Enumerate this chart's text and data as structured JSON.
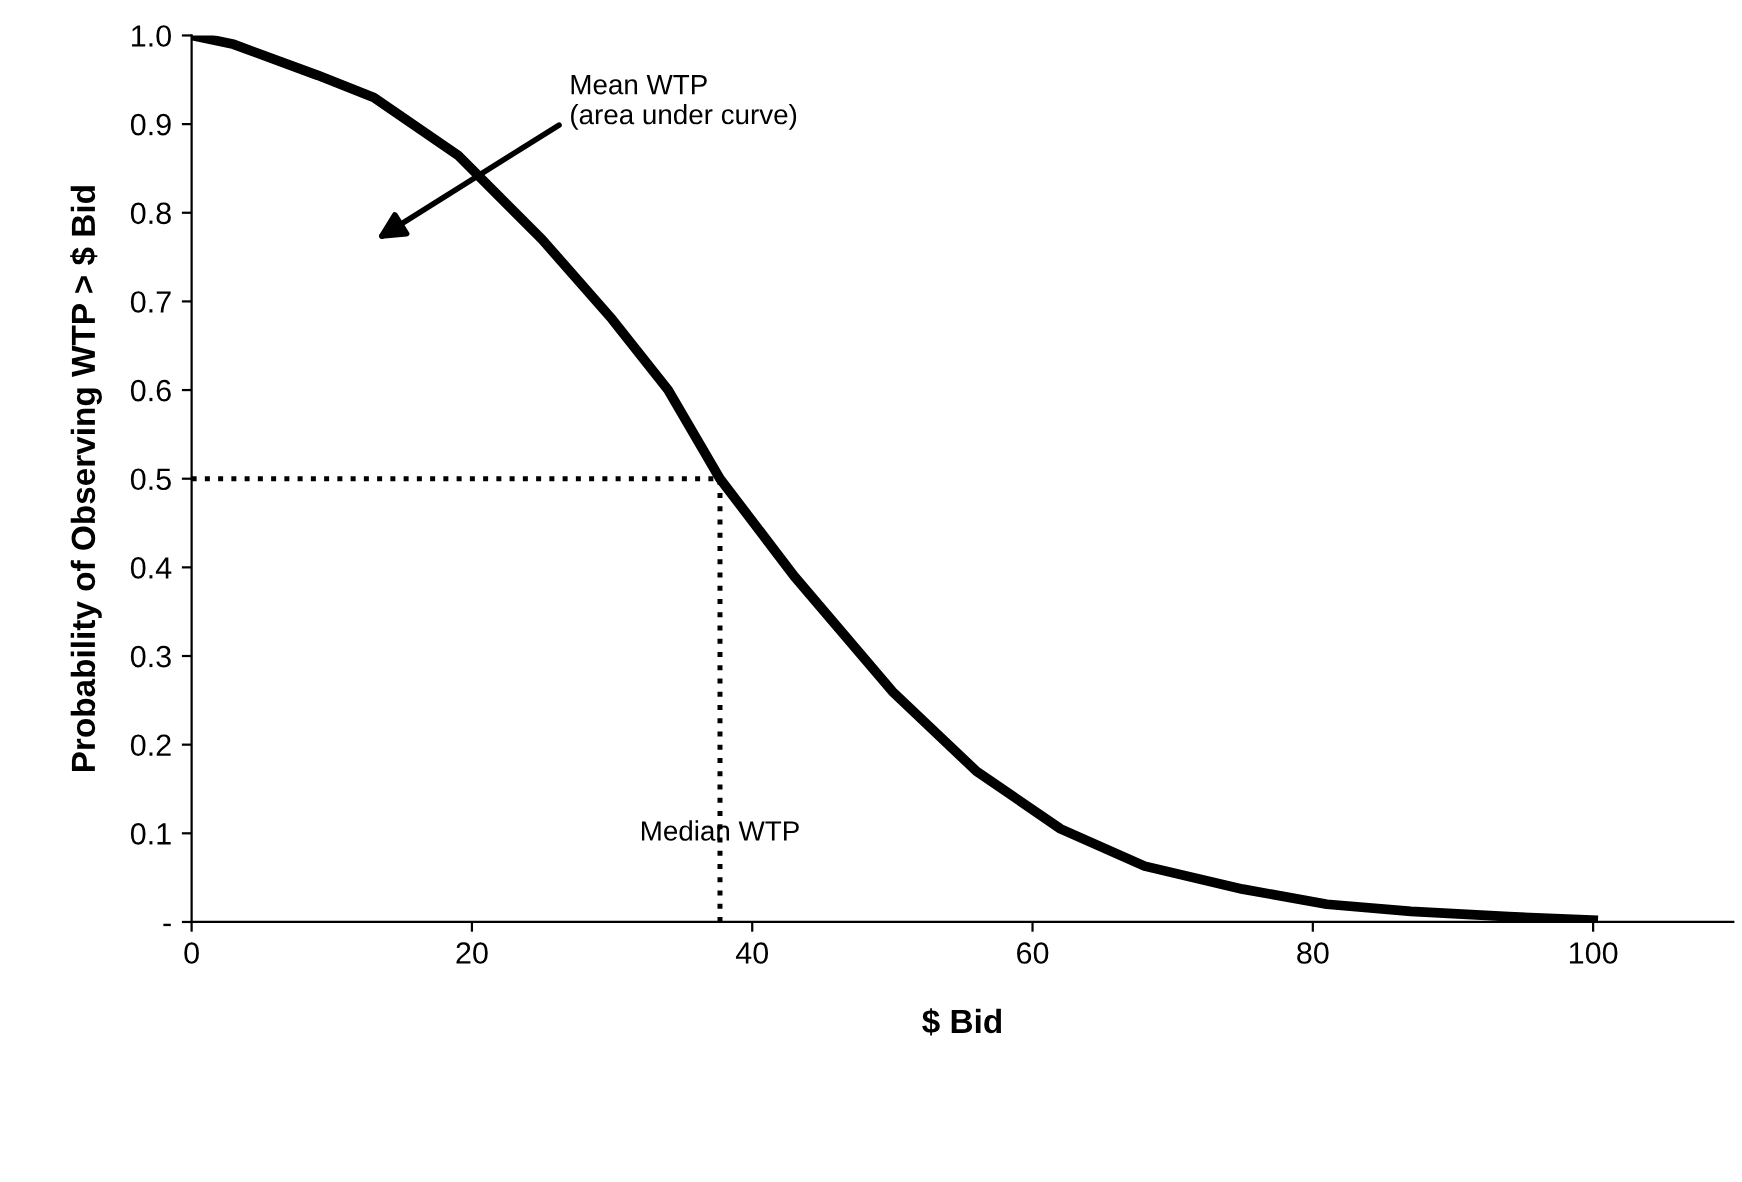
{
  "chart_data": {
    "type": "line",
    "xlabel": "$ Bid",
    "ylabel": "Probability of Observing WTP > $ Bid",
    "x": [
      0,
      3,
      9,
      13,
      19,
      25,
      30,
      34,
      37.7,
      43,
      50,
      56,
      62,
      68,
      75,
      81,
      87,
      94,
      100
    ],
    "series": [
      {
        "color": "#000000",
        "values": [
          1.0,
          0.99,
          0.955,
          0.93,
          0.865,
          0.77,
          0.68,
          0.6,
          0.5,
          0.39,
          0.26,
          0.17,
          0.105,
          0.063,
          0.037,
          0.02,
          0.012,
          0.006,
          0.002
        ]
      }
    ],
    "xlim": [
      0,
      110
    ],
    "xticks": [
      0,
      20,
      40,
      60,
      80,
      100
    ],
    "ylim": [
      0,
      1.0
    ],
    "yticks": [
      {
        "value": 0,
        "label": "-"
      },
      {
        "value": 0.1,
        "label": "0.1"
      },
      {
        "value": 0.2,
        "label": "0.2"
      },
      {
        "value": 0.3,
        "label": "0.3"
      },
      {
        "value": 0.4,
        "label": "0.4"
      },
      {
        "value": 0.5,
        "label": "0.5"
      },
      {
        "value": 0.6,
        "label": "0.6"
      },
      {
        "value": 0.7,
        "label": "0.7"
      },
      {
        "value": 0.8,
        "label": "0.8"
      },
      {
        "value": 0.9,
        "label": "0.9"
      },
      {
        "value": 1.0,
        "label": "1.0"
      }
    ],
    "ref_lines": [
      {
        "axis": "x",
        "value": 37.7,
        "label": "Median WTP",
        "line_style": "dotted",
        "color": "#000000"
      },
      {
        "axis": "y",
        "value": 0.5,
        "line_style": "dotted",
        "color": "#000000"
      }
    ],
    "annotations": [
      "Mean WTP\n(area under curve)"
    ],
    "grid": false,
    "marker": "none",
    "line_style": "solid"
  }
}
